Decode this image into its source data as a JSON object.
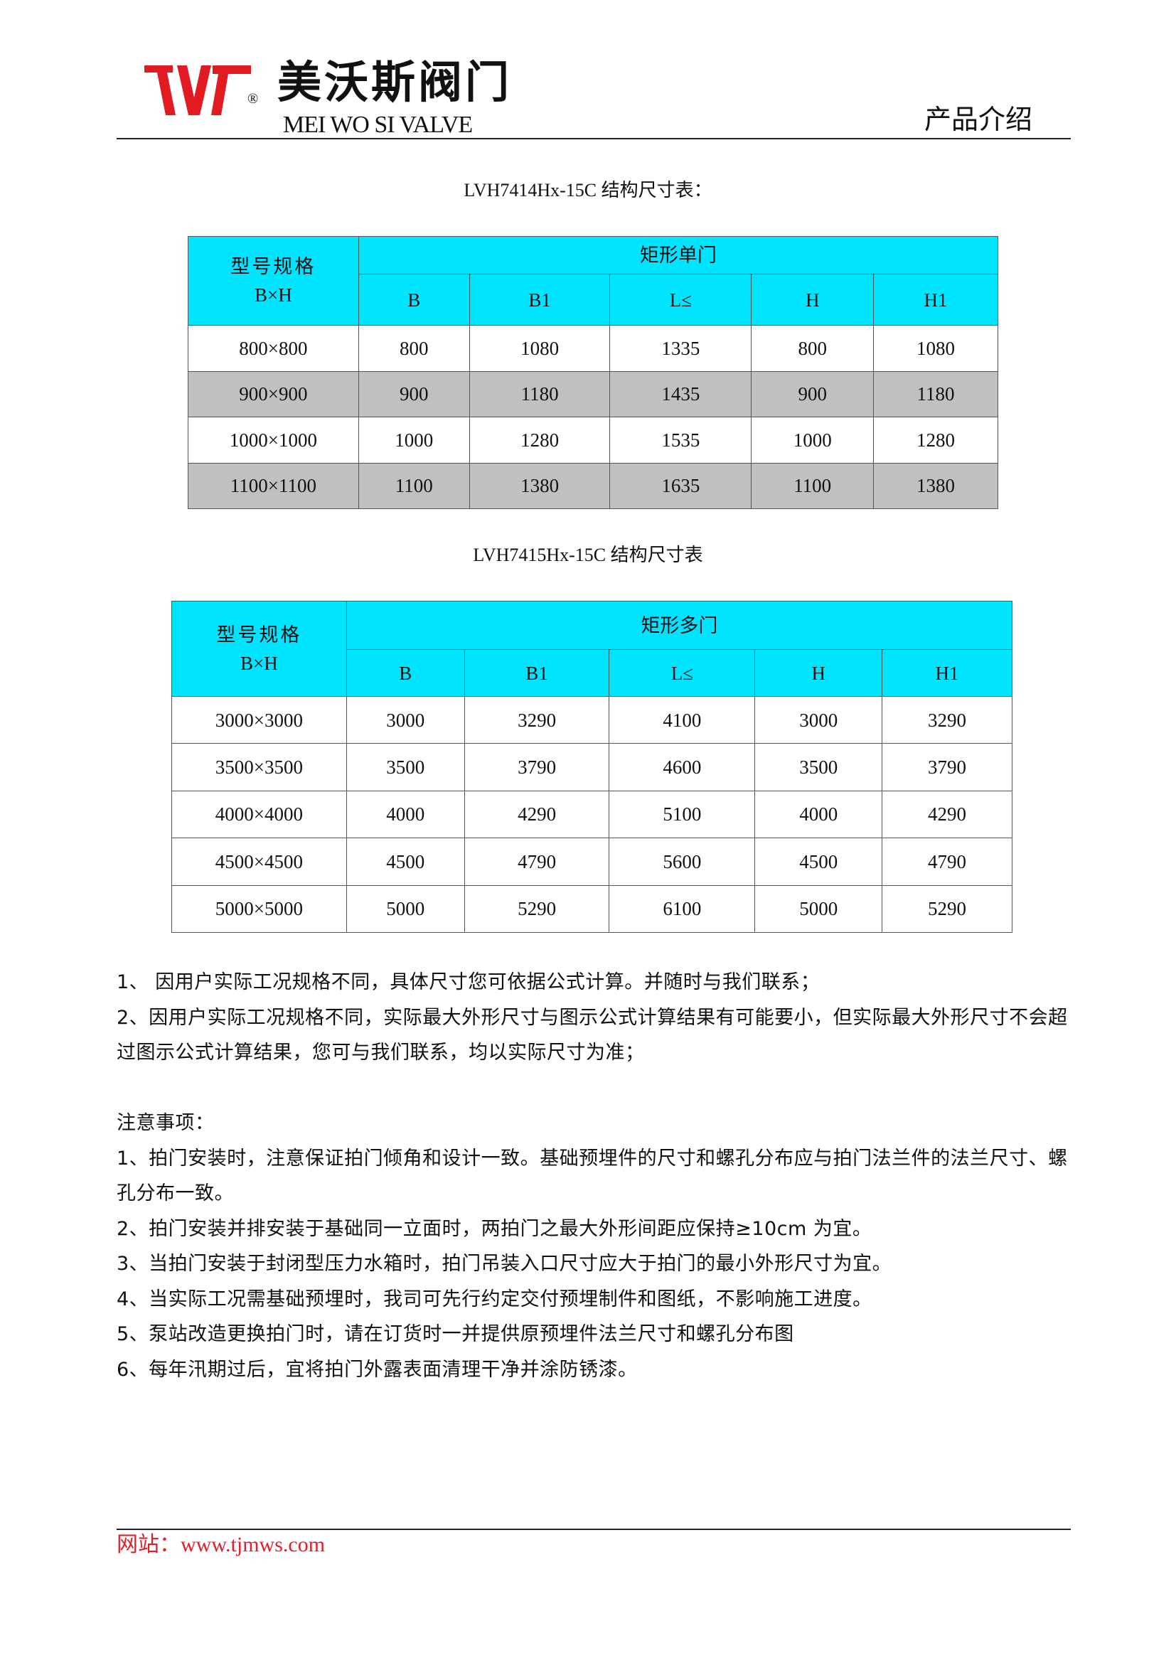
{
  "header": {
    "logo_cn": "美沃斯阀门",
    "logo_en": "MEI WO SI VALVE",
    "logo_mark": "TWS",
    "registered": "®",
    "section": "产品介绍",
    "brand_color": "#e21b23"
  },
  "table1": {
    "title": "LVH7414Hx-15C 结构尺寸表：",
    "spec_header": "型号规格",
    "spec_sub": "B×H",
    "group": "矩形单门",
    "columns": [
      "B",
      "B1",
      "L≤",
      "H",
      "H1"
    ],
    "rows": [
      [
        "800×800",
        "800",
        "1080",
        "1335",
        "800",
        "1080"
      ],
      [
        "900×900",
        "900",
        "1180",
        "1435",
        "900",
        "1180"
      ],
      [
        "1000×1000",
        "1000",
        "1280",
        "1535",
        "1000",
        "1280"
      ],
      [
        "1100×1100",
        "1100",
        "1380",
        "1635",
        "1100",
        "1380"
      ]
    ]
  },
  "table2": {
    "title": "LVH7415Hx-15C 结构尺寸表",
    "spec_header": "型号规格",
    "spec_sub": "B×H",
    "group": "矩形多门",
    "columns": [
      "B",
      "B1",
      "L≤",
      "H",
      "H1"
    ],
    "rows": [
      [
        "3000×3000",
        "3000",
        "3290",
        "4100",
        "3000",
        "3290"
      ],
      [
        "3500×3500",
        "3500",
        "3790",
        "4600",
        "3500",
        "3790"
      ],
      [
        "4000×4000",
        "4000",
        "4290",
        "5100",
        "4000",
        "4290"
      ],
      [
        "4500×4500",
        "4500",
        "4790",
        "5600",
        "4500",
        "4790"
      ],
      [
        "5000×5000",
        "5000",
        "5290",
        "6100",
        "5000",
        "5290"
      ]
    ]
  },
  "notes": [
    "1、 因用户实际工况规格不同，具体尺寸您可依据公式计算。并随时与我们联系；",
    "2、因用户实际工况规格不同，实际最大外形尺寸与图示公式计算结果有可能要小，但实际最大外形尺寸不会超过图示公式计算结果，您可与我们联系，均以实际尺寸为准；"
  ],
  "cautions": {
    "title": "注意事项：",
    "items": [
      "1、拍门安装时，注意保证拍门倾角和设计一致。基础预埋件的尺寸和螺孔分布应与拍门法兰件的法兰尺寸、螺孔分布一致。",
      "2、拍门安装并排安装于基础同一立面时，两拍门之最大外形间距应保持≥10cm 为宜。",
      "3、当拍门安装于封闭型压力水箱时，拍门吊装入口尺寸应大于拍门的最小外形尺寸为宜。",
      "4、当实际工况需基础预埋时，我司可先行约定交付预埋制件和图纸，不影响施工进度。",
      "5、泵站改造更换拍门时，请在订货时一并提供原预埋件法兰尺寸和螺孔分布图",
      "6、每年汛期过后，宜将拍门外露表面清理干净并涂防锈漆。"
    ]
  },
  "footer": {
    "website": "网站：www.tjmws.com"
  }
}
